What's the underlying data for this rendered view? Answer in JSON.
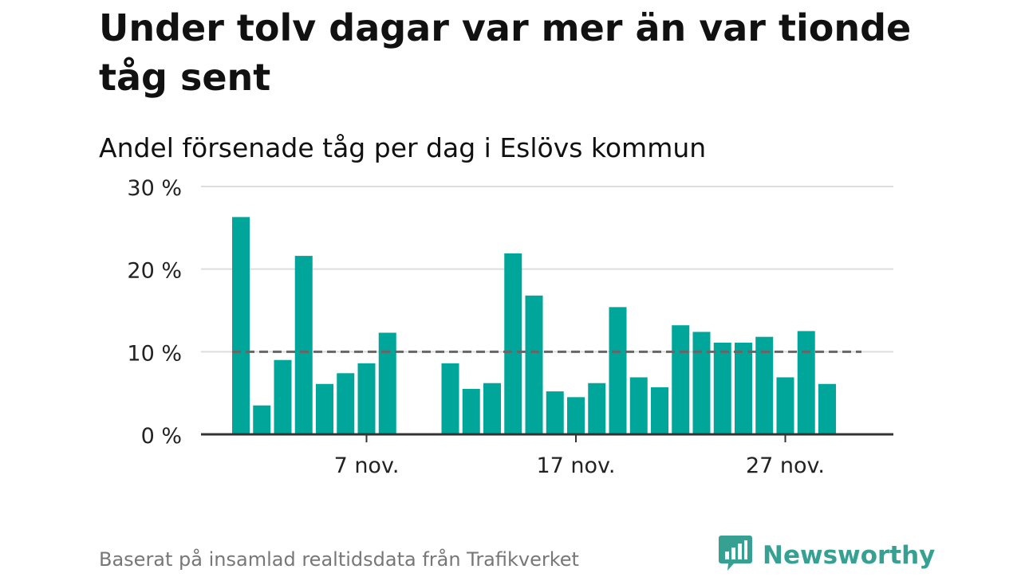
{
  "title": "Under tolv dagar var mer än var tionde tåg sent",
  "subtitle": "Andel försenade tåg per dag i Eslövs kommun",
  "source": "Baserat på insamlad realtidsdata från Trafikverket",
  "brand": {
    "name": "Newsworthy",
    "icon": "newsworthy-logo-icon"
  },
  "colors": {
    "bar": "#00a69a",
    "reference_line": "#666666",
    "grid": "#dddddd",
    "axis": "#333333",
    "brand": "#36a192"
  },
  "chart_data": {
    "type": "bar",
    "x": [
      1,
      2,
      3,
      4,
      5,
      6,
      7,
      8,
      9,
      10,
      11,
      12,
      13,
      14,
      15,
      16,
      17,
      18,
      19,
      20,
      21,
      22,
      23,
      24,
      25,
      26,
      27,
      28,
      29,
      30
    ],
    "values": [
      26.3,
      3.5,
      9.0,
      21.6,
      6.1,
      7.4,
      8.6,
      12.3,
      null,
      null,
      8.6,
      5.5,
      6.2,
      21.9,
      16.8,
      5.2,
      4.5,
      6.2,
      15.4,
      6.9,
      5.7,
      13.2,
      12.4,
      11.1,
      11.1,
      11.8,
      6.9,
      12.5,
      6.1,
      null
    ],
    "reference_line": 10,
    "ylim": [
      0,
      30
    ],
    "yticks": [
      0,
      10,
      20,
      30
    ],
    "ytick_labels": [
      "0 %",
      "10 %",
      "20 %",
      "30 %"
    ],
    "xticks": [
      7,
      17,
      27
    ],
    "xtick_labels": [
      "7 nov.",
      "17 nov.",
      "27 nov."
    ],
    "grid": true
  }
}
